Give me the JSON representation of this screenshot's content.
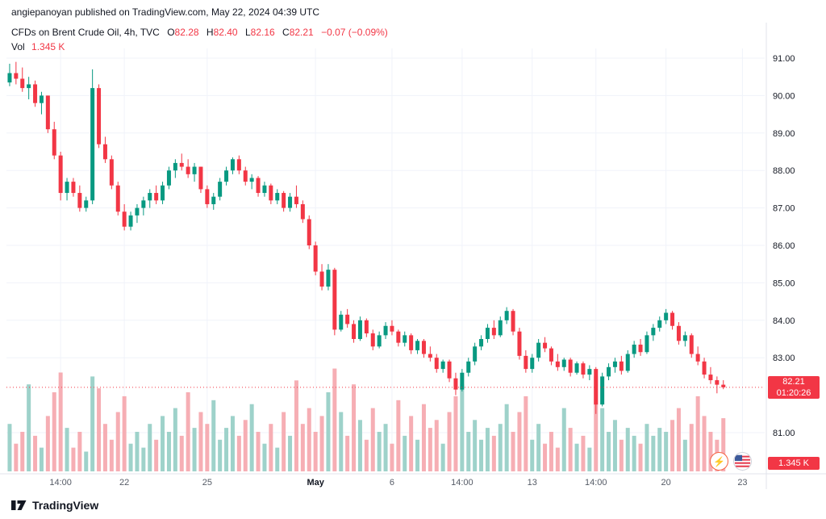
{
  "header": {
    "attribution": "angiepanoyan published on TradingView.com, May 22, 2024 04:39 UTC"
  },
  "legend": {
    "title": "CFDs on Brent Crude Oil, 4h, TVC",
    "o_label": "O",
    "o_value": "82.28",
    "h_label": "H",
    "h_value": "82.40",
    "l_label": "L",
    "l_value": "82.16",
    "c_label": "C",
    "c_value": "82.21",
    "change": "−0.07 (−0.09%)",
    "vol_label": "Vol",
    "vol_value": "1.345 K"
  },
  "price_axis": {
    "last_price_label": "82.21",
    "countdown": "01:20:26",
    "volume_badge": "1.345 K"
  },
  "footer": {
    "brand": "TradingView"
  },
  "icons": {
    "boost_glyph": "⚡"
  },
  "colors": {
    "up": "#089981",
    "down": "#F23645",
    "vol_up": "#9ED2CA",
    "vol_down": "#F6AEB4",
    "grid": "#F0F3FA",
    "axis_text": "#131722",
    "minor_text": "#555B66",
    "separator": "#E0E3EB",
    "accent": "#F23645"
  },
  "chart_data": {
    "type": "candlestick",
    "title": "CFDs on Brent Crude Oil, 4h, TVC",
    "symbol": "Brent Crude Oil",
    "interval": "4h",
    "exchange": "TVC",
    "last_price": 82.21,
    "ohlc_last": {
      "o": 82.28,
      "h": 82.4,
      "l": 82.16,
      "c": 82.21,
      "change": -0.07,
      "change_pct": -0.09
    },
    "volume_last_k": 1.345,
    "ylim": [
      80.6,
      91.4
    ],
    "price_ticks": [
      91,
      90,
      89,
      88,
      87,
      86,
      85,
      84,
      83,
      81
    ],
    "x_ticks": [
      {
        "i": 8,
        "label": "14:00",
        "bold": false
      },
      {
        "i": 18,
        "label": "22",
        "bold": false
      },
      {
        "i": 31,
        "label": "25",
        "bold": false
      },
      {
        "i": 48,
        "label": "May",
        "bold": true
      },
      {
        "i": 60,
        "label": "6",
        "bold": false
      },
      {
        "i": 71,
        "label": "14:00",
        "bold": false
      },
      {
        "i": 82,
        "label": "13",
        "bold": false
      },
      {
        "i": 92,
        "label": "14:00",
        "bold": false
      },
      {
        "i": 103,
        "label": "20",
        "bold": false
      },
      {
        "i": 115,
        "label": "23",
        "bold": false
      }
    ],
    "candles": [
      [
        90.35,
        90.85,
        90.25,
        90.6
      ],
      [
        90.6,
        90.9,
        90.3,
        90.45
      ],
      [
        90.45,
        90.75,
        90.1,
        90.2
      ],
      [
        90.2,
        90.5,
        89.9,
        90.3
      ],
      [
        90.3,
        90.4,
        89.7,
        89.8
      ],
      [
        89.8,
        90.1,
        89.5,
        90.0
      ],
      [
        90.0,
        90.0,
        89.0,
        89.1
      ],
      [
        89.1,
        89.3,
        88.3,
        88.4
      ],
      [
        88.4,
        88.5,
        87.2,
        87.4
      ],
      [
        87.4,
        87.8,
        87.2,
        87.7
      ],
      [
        87.7,
        87.8,
        87.3,
        87.4
      ],
      [
        87.4,
        87.6,
        86.9,
        87.0
      ],
      [
        87.0,
        87.3,
        86.9,
        87.2
      ],
      [
        87.2,
        90.7,
        87.1,
        90.2
      ],
      [
        90.2,
        90.3,
        88.6,
        88.7
      ],
      [
        88.7,
        88.9,
        88.2,
        88.3
      ],
      [
        88.3,
        88.4,
        87.5,
        87.6
      ],
      [
        87.6,
        87.7,
        86.8,
        86.9
      ],
      [
        86.9,
        87.1,
        86.4,
        86.5
      ],
      [
        86.5,
        86.9,
        86.4,
        86.8
      ],
      [
        86.8,
        87.1,
        86.6,
        87.0
      ],
      [
        87.0,
        87.3,
        86.8,
        87.2
      ],
      [
        87.2,
        87.5,
        87.0,
        87.4
      ],
      [
        87.4,
        87.6,
        87.1,
        87.2
      ],
      [
        87.2,
        87.7,
        87.1,
        87.6
      ],
      [
        87.6,
        88.1,
        87.5,
        88.0
      ],
      [
        88.0,
        88.3,
        87.8,
        88.2
      ],
      [
        88.2,
        88.45,
        88.0,
        88.1
      ],
      [
        88.1,
        88.3,
        87.8,
        87.9
      ],
      [
        87.9,
        88.2,
        87.7,
        88.1
      ],
      [
        88.1,
        88.1,
        87.4,
        87.5
      ],
      [
        87.5,
        87.6,
        87.0,
        87.1
      ],
      [
        87.1,
        87.4,
        86.95,
        87.3
      ],
      [
        87.3,
        87.8,
        87.2,
        87.7
      ],
      [
        87.7,
        88.1,
        87.6,
        88.0
      ],
      [
        88.0,
        88.35,
        87.9,
        88.3
      ],
      [
        88.3,
        88.4,
        87.9,
        88.0
      ],
      [
        88.0,
        88.1,
        87.6,
        87.7
      ],
      [
        87.7,
        87.9,
        87.5,
        87.8
      ],
      [
        87.8,
        87.85,
        87.3,
        87.4
      ],
      [
        87.4,
        87.7,
        87.3,
        87.6
      ],
      [
        87.6,
        87.65,
        87.1,
        87.2
      ],
      [
        87.2,
        87.5,
        87.1,
        87.4
      ],
      [
        87.4,
        87.45,
        86.9,
        87.0
      ],
      [
        87.0,
        87.4,
        86.9,
        87.3
      ],
      [
        87.3,
        87.6,
        87.0,
        87.1
      ],
      [
        87.1,
        87.2,
        86.6,
        86.7
      ],
      [
        86.7,
        86.8,
        85.9,
        86.0
      ],
      [
        86.0,
        86.1,
        85.2,
        85.3
      ],
      [
        85.3,
        85.5,
        84.8,
        84.9
      ],
      [
        84.9,
        85.5,
        84.8,
        85.35
      ],
      [
        85.35,
        85.4,
        83.6,
        83.75
      ],
      [
        83.75,
        84.25,
        83.7,
        84.15
      ],
      [
        84.15,
        84.3,
        83.8,
        83.9
      ],
      [
        83.9,
        84.0,
        83.4,
        83.5
      ],
      [
        83.5,
        84.1,
        83.45,
        84.0
      ],
      [
        84.0,
        84.05,
        83.55,
        83.65
      ],
      [
        83.65,
        83.75,
        83.2,
        83.3
      ],
      [
        83.3,
        83.7,
        83.25,
        83.6
      ],
      [
        83.6,
        83.95,
        83.5,
        83.85
      ],
      [
        83.85,
        84.0,
        83.6,
        83.7
      ],
      [
        83.7,
        83.75,
        83.3,
        83.4
      ],
      [
        83.4,
        83.7,
        83.3,
        83.6
      ],
      [
        83.6,
        83.65,
        83.1,
        83.2
      ],
      [
        83.2,
        83.5,
        83.1,
        83.45
      ],
      [
        83.45,
        83.5,
        83.0,
        83.1
      ],
      [
        83.1,
        83.3,
        82.9,
        83.0
      ],
      [
        83.0,
        83.1,
        82.6,
        82.7
      ],
      [
        82.7,
        82.95,
        82.6,
        82.9
      ],
      [
        82.9,
        82.95,
        82.35,
        82.45
      ],
      [
        82.45,
        82.6,
        82.0,
        82.15
      ],
      [
        82.15,
        82.7,
        82.1,
        82.6
      ],
      [
        82.6,
        83.0,
        82.5,
        82.9
      ],
      [
        82.9,
        83.4,
        82.8,
        83.3
      ],
      [
        83.3,
        83.6,
        83.2,
        83.5
      ],
      [
        83.5,
        83.9,
        83.4,
        83.8
      ],
      [
        83.8,
        84.0,
        83.5,
        83.6
      ],
      [
        83.6,
        84.1,
        83.55,
        84.0
      ],
      [
        84.0,
        84.35,
        83.9,
        84.25
      ],
      [
        84.25,
        84.3,
        83.6,
        83.7
      ],
      [
        83.7,
        83.8,
        82.95,
        83.05
      ],
      [
        83.05,
        83.2,
        82.6,
        82.7
      ],
      [
        82.7,
        83.1,
        82.6,
        83.0
      ],
      [
        83.0,
        83.5,
        82.9,
        83.4
      ],
      [
        83.4,
        83.55,
        83.15,
        83.25
      ],
      [
        83.25,
        83.3,
        82.8,
        82.9
      ],
      [
        82.9,
        83.1,
        82.65,
        82.75
      ],
      [
        82.75,
        83.0,
        82.65,
        82.95
      ],
      [
        82.95,
        83.0,
        82.5,
        82.6
      ],
      [
        82.6,
        82.9,
        82.55,
        82.85
      ],
      [
        82.85,
        82.9,
        82.45,
        82.55
      ],
      [
        82.55,
        82.8,
        82.4,
        82.7
      ],
      [
        82.7,
        82.75,
        81.5,
        81.75
      ],
      [
        81.75,
        82.6,
        81.7,
        82.5
      ],
      [
        82.5,
        82.85,
        82.4,
        82.75
      ],
      [
        82.75,
        83.0,
        82.6,
        82.9
      ],
      [
        82.9,
        83.05,
        82.55,
        82.65
      ],
      [
        82.65,
        83.2,
        82.6,
        83.1
      ],
      [
        83.1,
        83.45,
        83.0,
        83.35
      ],
      [
        83.35,
        83.5,
        83.05,
        83.15
      ],
      [
        83.15,
        83.7,
        83.1,
        83.6
      ],
      [
        83.6,
        83.9,
        83.45,
        83.8
      ],
      [
        83.8,
        84.1,
        83.7,
        84.0
      ],
      [
        84.0,
        84.3,
        83.9,
        84.2
      ],
      [
        84.2,
        84.25,
        83.75,
        83.85
      ],
      [
        83.85,
        83.95,
        83.35,
        83.45
      ],
      [
        83.45,
        83.7,
        83.3,
        83.6
      ],
      [
        83.6,
        83.65,
        83.0,
        83.1
      ],
      [
        83.1,
        83.3,
        82.8,
        82.9
      ],
      [
        82.9,
        83.0,
        82.45,
        82.55
      ],
      [
        82.55,
        82.75,
        82.3,
        82.4
      ],
      [
        82.4,
        82.5,
        82.05,
        82.28
      ],
      [
        82.28,
        82.4,
        82.16,
        82.21
      ]
    ],
    "volumes_k": [
      1.2,
      0.7,
      1.0,
      2.2,
      0.9,
      0.6,
      1.4,
      2.0,
      2.5,
      1.1,
      0.6,
      1.0,
      0.5,
      2.4,
      2.1,
      1.2,
      0.8,
      1.5,
      1.9,
      0.7,
      1.0,
      0.6,
      1.2,
      0.8,
      1.4,
      1.0,
      1.6,
      0.9,
      2.0,
      1.1,
      1.5,
      1.2,
      1.8,
      0.8,
      1.1,
      1.4,
      0.9,
      1.3,
      1.7,
      1.0,
      0.7,
      1.2,
      0.6,
      1.5,
      0.9,
      2.3,
      1.2,
      1.6,
      1.0,
      1.4,
      2.0,
      2.6,
      1.5,
      0.9,
      2.2,
      1.3,
      0.8,
      1.6,
      1.0,
      1.2,
      0.7,
      1.8,
      0.9,
      1.4,
      0.8,
      1.7,
      1.1,
      1.3,
      0.7,
      1.5,
      1.9,
      2.2,
      1.0,
      1.3,
      0.8,
      1.1,
      0.9,
      1.2,
      1.7,
      1.0,
      1.5,
      1.9,
      0.8,
      1.2,
      0.7,
      1.0,
      0.6,
      1.6,
      1.1,
      0.7,
      0.9,
      0.6,
      2.4,
      1.6,
      1.0,
      1.3,
      0.8,
      1.1,
      0.9,
      0.7,
      1.2,
      0.9,
      1.1,
      1.0,
      1.3,
      1.6,
      0.8,
      1.2,
      1.9,
      1.4,
      1.0,
      0.8,
      1.345
    ]
  }
}
